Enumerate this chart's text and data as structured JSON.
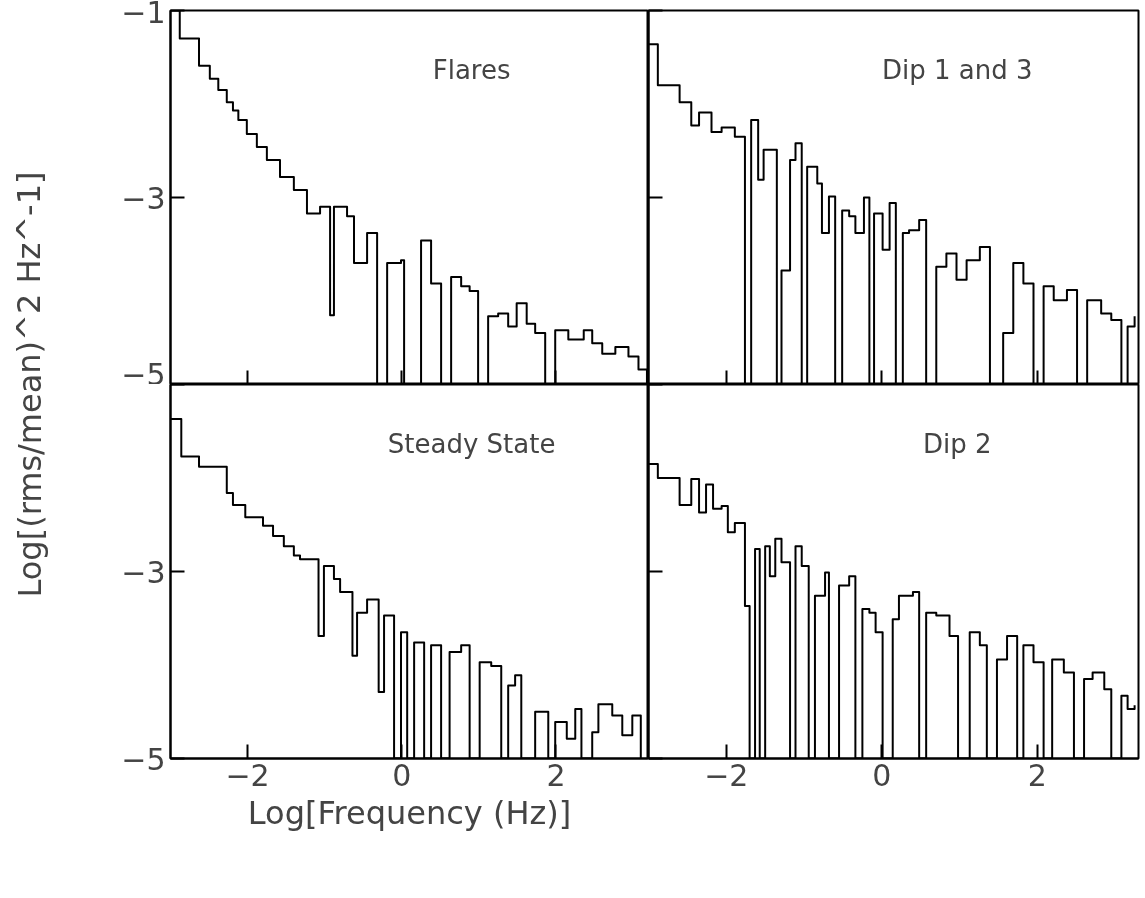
{
  "chart_data": [
    {
      "type": "step",
      "title": "Flares",
      "ylabel": "Log[(rms/mean)^2 Hz^-1]",
      "xlim": [
        -3,
        3.2
      ],
      "ylim": [
        -5,
        -1
      ],
      "xticks": [
        -2,
        0,
        2
      ],
      "yticks": [
        -1,
        -3,
        -5
      ],
      "tick_labels": "y",
      "grid": false,
      "series": [
        {
          "color": "#000000",
          "x": [
            -3,
            -2.88,
            -2.63,
            -2.49,
            -2.38,
            -2.27,
            -2.19,
            -2.12,
            -2.01,
            -1.88,
            -1.75,
            -1.58,
            -1.4,
            -1.23,
            -1.06,
            -0.93,
            -0.88,
            -0.71,
            -0.62,
            -0.45,
            -0.32,
            -0.19,
            -0.01,
            0.03,
            0.25,
            0.38,
            0.51,
            0.64,
            0.77,
            0.88,
            0.99,
            1.12,
            1.25,
            1.38,
            1.49,
            1.62,
            1.73,
            1.86,
            1.99,
            2.16,
            2.36,
            2.47,
            2.6,
            2.77,
            2.94,
            3.07,
            3.18
          ],
          "values": [
            -1.0,
            -1.3,
            -1.59,
            -1.73,
            -1.85,
            -1.98,
            -2.07,
            -2.17,
            -2.32,
            -2.46,
            -2.6,
            -2.78,
            -2.92,
            -3.17,
            -3.1,
            -4.26,
            -3.1,
            -3.2,
            -3.7,
            -3.38,
            -5,
            -3.7,
            -3.67,
            -5,
            -3.46,
            -3.92,
            -5,
            -3.85,
            -3.95,
            -4.0,
            -5,
            -4.27,
            -4.24,
            -4.38,
            -4.13,
            -4.35,
            -4.45,
            -5,
            -4.42,
            -4.52,
            -4.42,
            -4.56,
            -4.67,
            -4.6,
            -4.7,
            -4.84,
            -5
          ]
        }
      ]
    },
    {
      "type": "step",
      "title": "Dip 1 and 3",
      "xlim": [
        -3,
        3.3
      ],
      "ylim": [
        -5,
        -1
      ],
      "xticks": [
        -2,
        0,
        2
      ],
      "yticks": [
        -1,
        -3,
        -5
      ],
      "tick_labels": false,
      "grid": false,
      "series": [
        {
          "color": "#000000",
          "x": [
            -3,
            -2.88,
            -2.6,
            -2.45,
            -2.35,
            -2.19,
            -2.06,
            -1.89,
            -1.76,
            -1.68,
            -1.59,
            -1.52,
            -1.42,
            -1.35,
            -1.29,
            -1.18,
            -1.11,
            -1.03,
            -0.96,
            -0.83,
            -0.77,
            -0.68,
            -0.6,
            -0.51,
            -0.42,
            -0.34,
            -0.23,
            -0.16,
            -0.1,
            0.01,
            0.1,
            0.18,
            0.27,
            0.35,
            0.48,
            0.57,
            0.7,
            0.83,
            0.96,
            1.09,
            1.26,
            1.39,
            1.56,
            1.69,
            1.82,
            1.95,
            2.08,
            2.21,
            2.38,
            2.51,
            2.64,
            2.82,
            2.95,
            3.08,
            3.16,
            3.25
          ],
          "values": [
            -1.36,
            -1.8,
            -1.98,
            -2.23,
            -2.09,
            -2.3,
            -2.25,
            -2.35,
            -5,
            -2.17,
            -2.81,
            -2.49,
            -2.49,
            -5,
            -3.78,
            -2.6,
            -2.42,
            -5,
            -2.67,
            -2.85,
            -3.38,
            -2.99,
            -5,
            -3.14,
            -3.2,
            -3.38,
            -3.0,
            -5,
            -3.17,
            -3.56,
            -3.06,
            -5,
            -3.38,
            -3.35,
            -3.24,
            -5,
            -3.74,
            -3.6,
            -3.88,
            -3.67,
            -3.53,
            -5,
            -4.45,
            -3.7,
            -3.92,
            -5,
            -3.95,
            -4.1,
            -3.99,
            -5,
            -4.1,
            -4.24,
            -4.31,
            -5,
            -4.38,
            -4.27
          ]
        }
      ]
    },
    {
      "type": "step",
      "title": "Steady State",
      "xlabel": "Log[Frequency (Hz)]",
      "xlim": [
        -3,
        3.2
      ],
      "ylim": [
        -5,
        -1
      ],
      "xticks": [
        -2,
        0,
        2
      ],
      "yticks": [
        {
          "value": -1,
          "label": null
        },
        -3,
        -5
      ],
      "grid": false,
      "series": [
        {
          "color": "#000000",
          "x": [
            -3,
            -2.86,
            -2.63,
            -2.27,
            -2.19,
            -2.03,
            -1.8,
            -1.67,
            -1.53,
            -1.4,
            -1.32,
            -1.08,
            -1.01,
            -0.88,
            -0.8,
            -0.64,
            -0.58,
            -0.45,
            -0.3,
            -0.23,
            -0.1,
            -0.01,
            0.07,
            0.16,
            0.29,
            0.38,
            0.51,
            0.62,
            0.77,
            0.88,
            1.01,
            1.16,
            1.29,
            1.38,
            1.47,
            1.55,
            1.73,
            1.9,
            1.99,
            2.14,
            2.25,
            2.33,
            2.47,
            2.55,
            2.73,
            2.86,
            2.99,
            3.1
          ],
          "values": [
            -1.37,
            -1.77,
            -1.88,
            -2.16,
            -2.29,
            -2.42,
            -2.51,
            -2.62,
            -2.73,
            -2.83,
            -2.87,
            -3.69,
            -2.94,
            -3.08,
            -3.22,
            -3.9,
            -3.44,
            -3.3,
            -4.29,
            -3.47,
            -5,
            -3.65,
            -5,
            -3.76,
            -5,
            -3.79,
            -5,
            -3.86,
            -3.79,
            -5,
            -3.97,
            -4.01,
            -5,
            -4.22,
            -4.11,
            -5,
            -4.5,
            -5,
            -4.61,
            -4.79,
            -4.47,
            -5,
            -4.72,
            -4.42,
            -4.54,
            -4.75,
            -4.54,
            -5
          ]
        }
      ]
    },
    {
      "type": "step",
      "title": "Dip 2",
      "xlim": [
        -3,
        3.3
      ],
      "ylim": [
        -5,
        -1
      ],
      "xticks": [
        -2,
        0,
        2
      ],
      "yticks": [
        -1,
        -3,
        -5
      ],
      "tick_labels": "x",
      "grid": false,
      "series": [
        {
          "color": "#000000",
          "x": [
            -3,
            -2.88,
            -2.6,
            -2.45,
            -2.35,
            -2.26,
            -2.17,
            -2.06,
            -1.98,
            -1.89,
            -1.76,
            -1.7,
            -1.63,
            -1.57,
            -1.5,
            -1.44,
            -1.37,
            -1.29,
            -1.18,
            -1.11,
            -1.03,
            -0.94,
            -0.86,
            -0.73,
            -0.68,
            -0.55,
            -0.42,
            -0.34,
            -0.25,
            -0.16,
            -0.08,
            0.01,
            0.14,
            0.22,
            0.4,
            0.48,
            0.57,
            0.7,
            0.87,
            0.98,
            1.13,
            1.26,
            1.35,
            1.48,
            1.61,
            1.74,
            1.82,
            1.95,
            2.08,
            2.19,
            2.34,
            2.47,
            2.6,
            2.71,
            2.86,
            2.95,
            3.08,
            3.16,
            3.25
          ],
          "values": [
            -1.85,
            -2.0,
            -2.29,
            -2.01,
            -2.37,
            -2.07,
            -2.33,
            -2.3,
            -2.58,
            -2.48,
            -3.37,
            -5,
            -2.76,
            -5,
            -2.73,
            -3.05,
            -2.65,
            -2.9,
            -5,
            -2.73,
            -2.94,
            -5,
            -3.26,
            -3.01,
            -5,
            -3.15,
            -3.05,
            -5,
            -3.4,
            -3.44,
            -3.65,
            -5,
            -3.51,
            -3.26,
            -3.22,
            -5,
            -3.44,
            -3.47,
            -3.69,
            -5,
            -3.65,
            -3.79,
            -5,
            -3.94,
            -3.69,
            -5,
            -3.79,
            -3.97,
            -5,
            -3.94,
            -4.08,
            -5,
            -4.15,
            -4.08,
            -4.26,
            -5,
            -4.33,
            -4.47,
            -4.43
          ]
        }
      ]
    }
  ]
}
